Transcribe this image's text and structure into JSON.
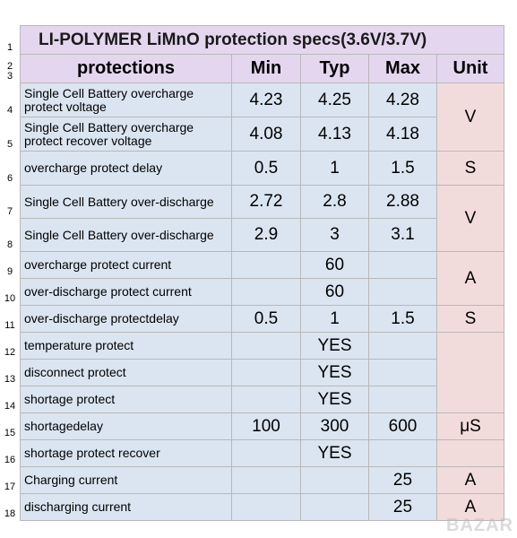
{
  "title": "LI-POLYMER LiMnO protection specs(3.6V/3.7V)",
  "headers": {
    "protections": "protections",
    "min": "Min",
    "typ": "Typ",
    "max": "Max",
    "unit": "Unit"
  },
  "row_numbers": [
    "1",
    "2",
    "3",
    "4",
    "5",
    "6",
    "7",
    "8",
    "9",
    "10",
    "11",
    "12",
    "13",
    "14",
    "15",
    "16",
    "17",
    "18"
  ],
  "rows": [
    {
      "label": "Single Cell Battery overcharge protect voltage",
      "min": "4.23",
      "typ": "4.25",
      "max": "4.28"
    },
    {
      "label": "Single Cell Battery overcharge protect recover voltage",
      "min": "4.08",
      "typ": "4.13",
      "max": "4.18"
    },
    {
      "label": "overcharge protect delay",
      "min": "0.5",
      "typ": "1",
      "max": "1.5"
    },
    {
      "label": "Single Cell Battery over-discharge",
      "min": "2.72",
      "typ": "2.8",
      "max": "2.88"
    },
    {
      "label": "Single Cell Battery over-discharge",
      "min": "2.9",
      "typ": "3",
      "max": "3.1"
    },
    {
      "label": "overcharge protect current",
      "min": "",
      "typ": "60",
      "max": ""
    },
    {
      "label": "over-discharge protect current",
      "min": "",
      "typ": "60",
      "max": ""
    },
    {
      "label": "over-discharge protectdelay",
      "min": "0.5",
      "typ": "1",
      "max": "1.5"
    },
    {
      "label": "temperature protect",
      "min": "",
      "typ": "YES",
      "max": ""
    },
    {
      "label": "disconnect protect",
      "min": "",
      "typ": "YES",
      "max": ""
    },
    {
      "label": "shortage protect",
      "min": "",
      "typ": "YES",
      "max": ""
    },
    {
      "label": "shortagedelay",
      "min": "100",
      "typ": "300",
      "max": "600"
    },
    {
      "label": "shortage protect recover",
      "min": "",
      "typ": "YES",
      "max": ""
    },
    {
      "label": "Charging current",
      "min": "",
      "typ": "",
      "max": "25"
    },
    {
      "label": "discharging current",
      "min": "",
      "typ": "",
      "max": "25"
    }
  ],
  "units": {
    "u1": "V",
    "u2": "S",
    "u3": "V",
    "u4": "A",
    "u5": "S",
    "u6": "μS",
    "u7": "A",
    "u8": "A"
  },
  "watermark": "BAZAR"
}
